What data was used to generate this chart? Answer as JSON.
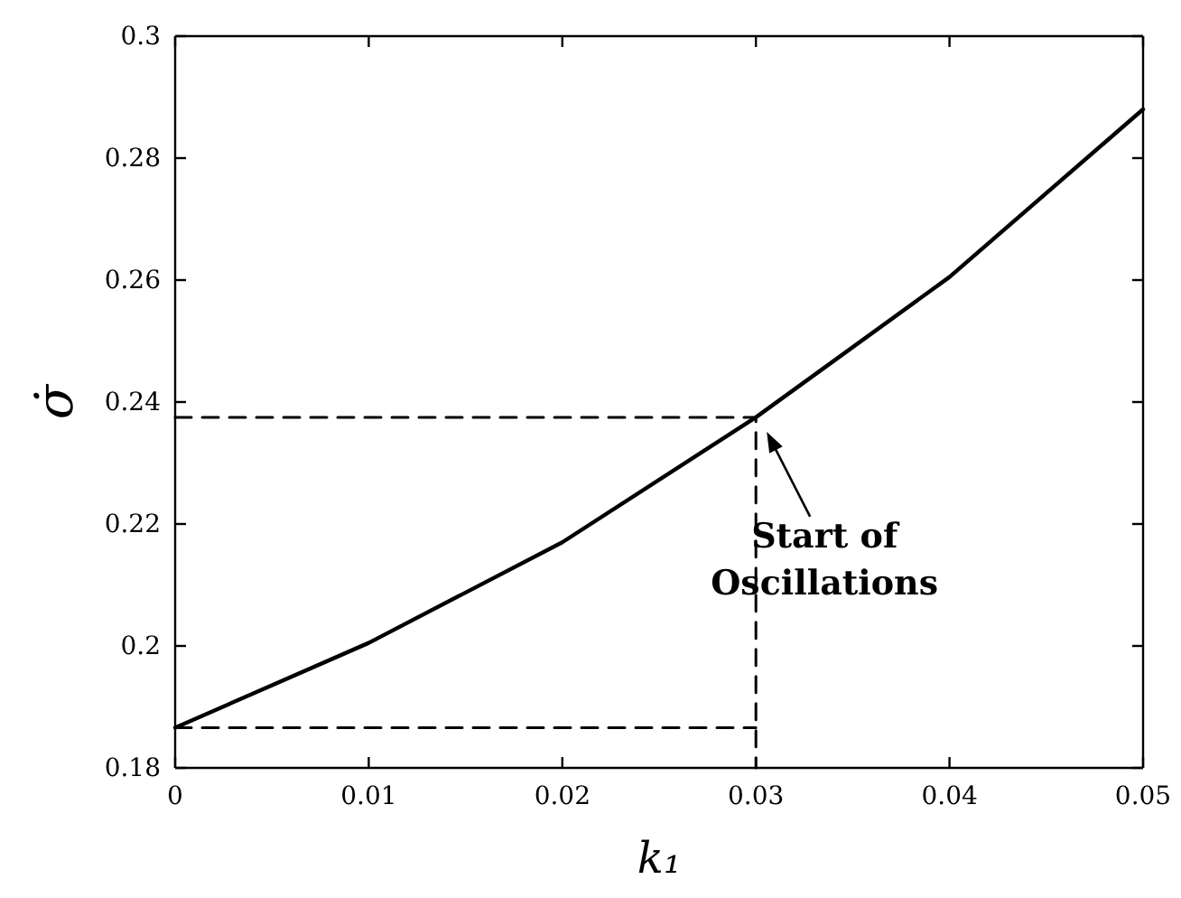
{
  "chart_data": {
    "type": "line",
    "xlabel": "k₁",
    "ylabel": "σ̇",
    "xlim": [
      0,
      0.05
    ],
    "ylim": [
      0.18,
      0.3
    ],
    "xticks": [
      0,
      0.01,
      0.02,
      0.03,
      0.04,
      0.05
    ],
    "yticks": [
      0.18,
      0.2,
      0.22,
      0.24,
      0.26,
      0.28,
      0.3
    ],
    "grid": false,
    "marker": "none",
    "series": [
      {
        "color": "#000000",
        "x": [
          0,
          0.01,
          0.02,
          0.03,
          0.04,
          0.05
        ],
        "values": [
          0.1866,
          0.2005,
          0.217,
          0.2375,
          0.2605,
          0.288
        ],
        "line_style": "solid"
      },
      {
        "color": "#000000",
        "x": [
          0,
          0.03,
          0.03
        ],
        "values": [
          0.2375,
          0.2375,
          0.18
        ],
        "line_style": "dashed"
      },
      {
        "color": "#000000",
        "x": [
          0,
          0.03
        ],
        "values": [
          0.1866,
          0.1866
        ],
        "line_style": "dashed"
      }
    ],
    "annotations": [
      {
        "text": "Start of Oscillations",
        "x": 0.03,
        "y": 0.2375
      }
    ]
  }
}
